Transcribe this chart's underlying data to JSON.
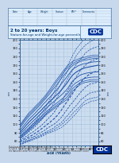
{
  "title_line1": "2 to 20 years: Boys",
  "title_line2": "Stature-for-age and Weight-for-age percentiles",
  "bg_color": "#ccddf0",
  "grid_major_color": "#aac4dc",
  "grid_minor_color": "#bbcfe3",
  "line_color": "#2255aa",
  "border_color": "#336699",
  "table_bg": "#ddeeff",
  "age_min": 2,
  "age_max": 20,
  "stature_min": 75,
  "stature_max": 200,
  "weight_min": 10,
  "weight_max": 105,
  "stature_percentile_data": {
    "ages": [
      2,
      2.5,
      3,
      3.5,
      4,
      4.5,
      5,
      5.5,
      6,
      6.5,
      7,
      7.5,
      8,
      8.5,
      9,
      9.5,
      10,
      10.5,
      11,
      11.5,
      12,
      12.5,
      13,
      13.5,
      14,
      14.5,
      15,
      15.5,
      16,
      16.5,
      17,
      17.5,
      18,
      18.5,
      19,
      19.5,
      20
    ],
    "p3": [
      82.0,
      84.8,
      86.7,
      89.3,
      92.0,
      94.3,
      96.5,
      99.0,
      101.5,
      103.8,
      106.2,
      108.5,
      111.0,
      113.0,
      115.0,
      117.0,
      119.0,
      121.0,
      123.0,
      124.5,
      126.5,
      128.0,
      130.0,
      134.0,
      138.5,
      141.0,
      143.5,
      145.5,
      147.5,
      148.5,
      149.5,
      150.0,
      150.5,
      151.0,
      151.0,
      151.0,
      151.0
    ],
    "p5": [
      83.5,
      86.3,
      88.3,
      90.9,
      93.5,
      95.8,
      98.0,
      100.5,
      103.0,
      105.2,
      107.5,
      110.0,
      112.5,
      114.5,
      116.5,
      118.7,
      120.8,
      122.8,
      124.8,
      126.5,
      128.5,
      130.5,
      133.0,
      137.0,
      141.5,
      144.0,
      146.0,
      148.0,
      149.5,
      150.5,
      151.5,
      152.0,
      152.5,
      152.8,
      153.0,
      153.0,
      153.0
    ],
    "p10": [
      85.0,
      87.8,
      90.0,
      92.5,
      95.0,
      97.5,
      100.0,
      102.5,
      105.0,
      107.3,
      109.5,
      112.0,
      114.5,
      116.8,
      118.8,
      121.0,
      123.2,
      125.2,
      127.2,
      129.2,
      131.5,
      133.8,
      136.5,
      140.5,
      145.0,
      147.5,
      149.5,
      151.0,
      152.5,
      153.5,
      154.5,
      155.0,
      155.5,
      155.8,
      156.0,
      156.0,
      156.0
    ],
    "p25": [
      87.5,
      90.5,
      93.0,
      95.8,
      98.5,
      101.0,
      103.5,
      106.0,
      108.5,
      111.0,
      113.5,
      116.0,
      118.5,
      121.0,
      123.2,
      125.5,
      127.8,
      130.0,
      132.2,
      134.5,
      137.0,
      139.5,
      142.5,
      146.5,
      150.5,
      153.0,
      155.0,
      157.0,
      158.5,
      159.5,
      160.2,
      160.8,
      161.2,
      161.5,
      161.8,
      162.0,
      162.0
    ],
    "p50": [
      90.0,
      93.0,
      96.0,
      99.0,
      102.0,
      104.5,
      107.0,
      109.5,
      112.0,
      114.5,
      117.0,
      120.0,
      122.5,
      125.0,
      127.5,
      130.0,
      132.5,
      135.0,
      137.5,
      140.5,
      143.5,
      146.5,
      150.0,
      154.0,
      157.5,
      160.0,
      162.0,
      163.5,
      165.0,
      166.0,
      167.0,
      167.5,
      168.0,
      168.5,
      169.0,
      169.5,
      170.0
    ],
    "p75": [
      92.5,
      95.8,
      99.0,
      102.2,
      105.5,
      108.0,
      110.5,
      113.0,
      116.0,
      118.5,
      121.5,
      124.5,
      127.0,
      130.0,
      132.5,
      135.5,
      138.2,
      141.0,
      144.0,
      147.5,
      151.0,
      154.0,
      157.5,
      161.0,
      164.5,
      166.5,
      168.0,
      169.5,
      170.5,
      171.5,
      172.0,
      172.5,
      173.0,
      173.5,
      174.0,
      174.0,
      174.5
    ],
    "p90": [
      95.5,
      99.0,
      102.5,
      105.8,
      109.0,
      111.5,
      114.0,
      116.8,
      119.5,
      122.0,
      125.0,
      128.0,
      131.0,
      134.0,
      137.0,
      140.5,
      143.5,
      147.0,
      150.5,
      154.0,
      157.5,
      160.5,
      163.5,
      166.5,
      169.0,
      171.0,
      172.5,
      173.5,
      174.5,
      175.5,
      176.0,
      176.5,
      177.0,
      177.5,
      178.0,
      178.0,
      178.0
    ],
    "p95": [
      97.5,
      101.0,
      104.5,
      107.8,
      111.0,
      113.5,
      116.0,
      119.0,
      121.5,
      124.0,
      127.0,
      130.0,
      133.0,
      136.5,
      139.5,
      143.0,
      147.0,
      150.5,
      154.0,
      157.5,
      161.0,
      164.0,
      167.0,
      169.5,
      171.5,
      173.0,
      174.5,
      175.5,
      176.5,
      177.0,
      177.5,
      178.5,
      179.0,
      179.5,
      180.0,
      180.0,
      180.0
    ],
    "p97": [
      98.5,
      102.5,
      106.0,
      109.5,
      113.0,
      115.5,
      118.0,
      121.0,
      123.5,
      126.0,
      129.0,
      132.0,
      135.0,
      138.5,
      142.0,
      146.0,
      149.5,
      153.0,
      156.5,
      160.0,
      163.5,
      166.5,
      169.5,
      172.0,
      174.0,
      175.5,
      176.5,
      177.5,
      178.5,
      179.0,
      179.5,
      180.5,
      181.0,
      181.5,
      182.0,
      182.0,
      182.0
    ]
  },
  "weight_percentile_data": {
    "ages": [
      2,
      2.5,
      3,
      3.5,
      4,
      4.5,
      5,
      5.5,
      6,
      6.5,
      7,
      7.5,
      8,
      8.5,
      9,
      9.5,
      10,
      10.5,
      11,
      11.5,
      12,
      12.5,
      13,
      13.5,
      14,
      14.5,
      15,
      15.5,
      16,
      16.5,
      17,
      17.5,
      18,
      18.5,
      19,
      19.5,
      20
    ],
    "p3": [
      10.5,
      11.0,
      12.0,
      12.8,
      13.5,
      14.2,
      15.0,
      15.8,
      16.5,
      17.3,
      18.0,
      19.0,
      20.0,
      21.0,
      21.5,
      22.3,
      23.0,
      24.0,
      25.0,
      26.0,
      27.5,
      29.0,
      31.0,
      33.0,
      35.0,
      37.0,
      39.0,
      41.5,
      44.0,
      46.0,
      47.0,
      48.0,
      49.0,
      50.0,
      50.0,
      50.5,
      51.0
    ],
    "p5": [
      11.0,
      11.5,
      12.5,
      13.3,
      14.0,
      14.8,
      15.5,
      16.3,
      17.0,
      17.8,
      19.0,
      20.0,
      21.0,
      22.0,
      22.5,
      23.5,
      24.5,
      25.8,
      27.0,
      28.5,
      30.0,
      32.0,
      33.5,
      36.0,
      38.0,
      40.0,
      42.0,
      44.0,
      46.0,
      48.0,
      50.0,
      51.0,
      52.0,
      52.5,
      53.0,
      53.0,
      54.0
    ],
    "p10": [
      11.5,
      12.0,
      13.0,
      14.0,
      14.5,
      15.5,
      16.5,
      17.3,
      18.0,
      19.0,
      20.0,
      21.0,
      22.0,
      23.0,
      24.0,
      25.0,
      26.5,
      28.0,
      29.0,
      30.5,
      32.5,
      35.0,
      37.0,
      39.5,
      41.5,
      44.0,
      46.0,
      48.5,
      51.0,
      52.5,
      54.0,
      55.5,
      57.0,
      57.5,
      58.0,
      58.0,
      59.0
    ],
    "p25": [
      12.5,
      13.3,
      14.0,
      15.0,
      16.0,
      17.0,
      17.5,
      18.5,
      20.0,
      21.0,
      22.0,
      23.0,
      24.5,
      26.0,
      27.0,
      28.3,
      29.5,
      31.0,
      33.0,
      35.0,
      37.5,
      40.5,
      43.0,
      46.0,
      48.0,
      50.5,
      53.0,
      55.5,
      58.0,
      60.0,
      62.0,
      63.5,
      65.0,
      65.5,
      66.0,
      66.5,
      67.0
    ],
    "p50": [
      13.5,
      14.5,
      15.5,
      16.5,
      17.5,
      18.5,
      19.5,
      21.0,
      22.0,
      23.5,
      25.0,
      26.5,
      28.0,
      29.5,
      31.0,
      32.8,
      34.5,
      36.5,
      39.0,
      41.5,
      44.5,
      47.5,
      50.0,
      53.0,
      56.0,
      59.0,
      62.0,
      64.5,
      67.0,
      69.0,
      71.0,
      72.5,
      74.0,
      75.0,
      76.0,
      76.5,
      77.0
    ],
    "p75": [
      14.5,
      15.8,
      17.0,
      18.2,
      19.5,
      21.0,
      22.0,
      23.5,
      25.0,
      26.5,
      28.0,
      30.0,
      32.0,
      34.0,
      36.0,
      38.0,
      40.5,
      43.5,
      46.0,
      49.0,
      52.0,
      56.0,
      59.0,
      62.5,
      66.0,
      69.0,
      72.0,
      75.0,
      78.0,
      80.0,
      82.0,
      83.5,
      85.0,
      86.0,
      87.0,
      87.5,
      88.0
    ],
    "p90": [
      16.0,
      17.5,
      19.0,
      20.5,
      22.0,
      23.5,
      25.0,
      26.8,
      29.0,
      31.0,
      33.0,
      35.5,
      38.0,
      40.5,
      43.0,
      46.0,
      49.0,
      52.5,
      56.0,
      59.5,
      63.0,
      66.5,
      70.0,
      73.5,
      77.0,
      80.0,
      83.0,
      85.5,
      88.0,
      90.0,
      93.0,
      94.5,
      96.0,
      97.0,
      98.0,
      98.5,
      99.0
    ],
    "p95": [
      17.0,
      18.8,
      20.5,
      22.3,
      24.0,
      25.8,
      27.5,
      29.5,
      32.0,
      34.0,
      36.5,
      39.5,
      42.0,
      45.0,
      48.0,
      51.5,
      55.0,
      58.5,
      62.0,
      66.0,
      70.0,
      73.5,
      77.0,
      81.0,
      84.0,
      87.5,
      91.0,
      93.5,
      96.0,
      98.0,
      100.0,
      101.5,
      103.0,
      104.0,
      105.0,
      105.5,
      106.0
    ],
    "p97": [
      18.0,
      20.0,
      22.0,
      23.8,
      25.5,
      27.5,
      29.5,
      31.5,
      34.0,
      36.5,
      39.0,
      42.0,
      45.0,
      48.5,
      52.0,
      55.5,
      59.0,
      63.0,
      67.0,
      71.0,
      75.0,
      78.5,
      82.0,
      86.0,
      90.0,
      93.5,
      97.0,
      99.5,
      102.0,
      104.5,
      107.0,
      108.5,
      110.0,
      111.0,
      112.0,
      112.5,
      113.0
    ]
  }
}
